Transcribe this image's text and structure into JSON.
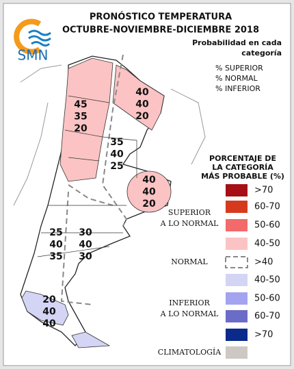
{
  "header": {
    "title_lines": [
      "PRONÓSTICO TEMPERATURA",
      "OCTUBRE-NOVIEMBRE-DICIEMBRE 2018"
    ]
  },
  "logo": {
    "text": "SMN"
  },
  "key": {
    "title_lines": [
      "Probabilidad en cada",
      "categoría"
    ],
    "items": [
      "% SUPERIOR",
      "% NORMAL",
      "% INFERIOR"
    ]
  },
  "regions": [
    {
      "values": [
        45,
        35,
        20
      ]
    },
    {
      "values": [
        40,
        40,
        20
      ]
    },
    {
      "values": [
        35,
        40,
        25
      ]
    },
    {
      "values": [
        40,
        40,
        20
      ]
    },
    {
      "values": [
        25,
        40,
        35
      ]
    },
    {
      "values": [
        30,
        40,
        30
      ]
    },
    {
      "values": [
        20,
        40,
        40
      ]
    }
  ],
  "legend": {
    "title_lines": [
      "PORCENTAJE DE",
      "LA CATEGORÍA",
      "MÁS PROBABLE (%)"
    ],
    "groups": [
      {
        "lines": [
          "SUPERIOR",
          "A LO NORMAL"
        ]
      },
      {
        "lines": [
          "NORMAL"
        ]
      },
      {
        "lines": [
          "INFERIOR",
          "A LO NORMAL"
        ]
      },
      {
        "lines": [
          "CLIMATOLOGÍA"
        ]
      }
    ],
    "items": [
      {
        "label": ">70",
        "color": "#a50f15"
      },
      {
        "label": "60-70",
        "color": "#d63a1e"
      },
      {
        "label": "50-60",
        "color": "#f26a6a"
      },
      {
        "label": "40-50",
        "color": "#fbc3c3"
      },
      {
        "label": ">40",
        "color": "#888888",
        "style": "dashed"
      },
      {
        "label": "40-50",
        "color": "#d4d4f5"
      },
      {
        "label": "50-60",
        "color": "#a3a3f0"
      },
      {
        "label": "60-70",
        "color": "#6b6bc8"
      },
      {
        "label": ">70",
        "color": "#0a2a8c"
      },
      {
        "color": "#cdc8c4"
      }
    ]
  }
}
